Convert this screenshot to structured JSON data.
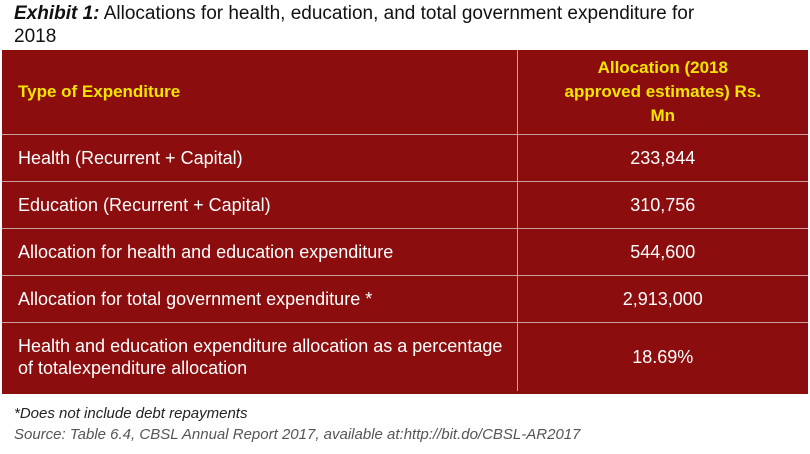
{
  "title": {
    "exhibit_label": "Exhibit 1:",
    "text": "Allocations for health, education, and total government expenditure for 2018"
  },
  "table": {
    "headers": [
      "Type of Expenditure",
      "Allocation (2018 approved estimates) Rs. Mn"
    ],
    "rows": [
      {
        "type": "Health (Recurrent + Capital)",
        "value": "233,844"
      },
      {
        "type": "Education (Recurrent + Capital)",
        "value": "310,756"
      },
      {
        "type": "Allocation for health and education expenditure",
        "value": "544,600"
      },
      {
        "type": "Allocation for total government expenditure *",
        "value": "2,913,000"
      },
      {
        "type": "Health and education expenditure allocation as a percentage of totalexpenditure allocation",
        "value": "18.69%"
      }
    ]
  },
  "notes": {
    "footnote": "*Does not include debt repayments",
    "source": "Source: Table 6.4, CBSL Annual Report 2017, available at:http://bit.do/CBSL-AR2017"
  },
  "colors": {
    "table_background": "#8b0d0d",
    "header_text": "#f2e600",
    "body_text": "#ffffff"
  }
}
